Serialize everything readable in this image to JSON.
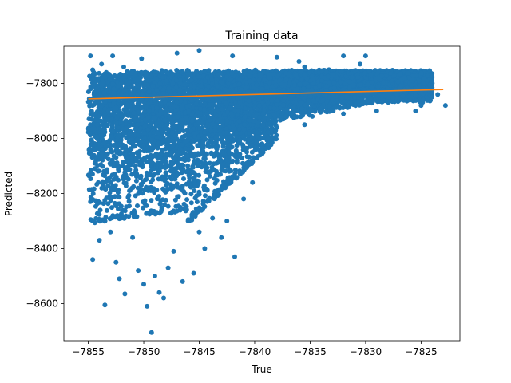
{
  "chart_data": {
    "type": "scatter",
    "title": "Training data",
    "xlabel": "True",
    "ylabel": "Predicted",
    "xlim": [
      -7857.2,
      -7821.5
    ],
    "ylim": [
      -8735,
      -7665
    ],
    "xticks": [
      -7855,
      -7850,
      -7845,
      -7840,
      -7835,
      -7830,
      -7825
    ],
    "xtick_labels": [
      "−7855",
      "−7850",
      "−7845",
      "−7840",
      "−7835",
      "−7830",
      "−7825"
    ],
    "yticks": [
      -8600,
      -8400,
      -8200,
      -8000,
      -7800
    ],
    "ytick_labels": [
      "−8600",
      "−8400",
      "−8200",
      "−8000",
      "−7800"
    ],
    "grid": false,
    "legend": "none",
    "series": [
      {
        "kind": "scatter",
        "color": "#1f77b4",
        "points": [
          [
            -7854.8,
            -7700
          ],
          [
            -7854.5,
            -7760
          ],
          [
            -7854.3,
            -7820
          ],
          [
            -7854.6,
            -7880
          ],
          [
            -7854.2,
            -7950
          ],
          [
            -7854.7,
            -8020
          ],
          [
            -7854.4,
            -8090
          ],
          [
            -7854.1,
            -8160
          ],
          [
            -7854.8,
            -8230
          ],
          [
            -7854.5,
            -8300
          ],
          [
            -7854.0,
            -8370
          ],
          [
            -7854.6,
            -8440
          ],
          [
            -7853.5,
            -8605
          ],
          [
            -7853.8,
            -7730
          ],
          [
            -7853.2,
            -7900
          ],
          [
            -7853.6,
            -8120
          ],
          [
            -7853.0,
            -8340
          ],
          [
            -7852.5,
            -8450
          ],
          [
            -7852.2,
            -8510
          ],
          [
            -7851.7,
            -8565
          ],
          [
            -7851.8,
            -7740
          ],
          [
            -7851.0,
            -8360
          ],
          [
            -7850.5,
            -8480
          ],
          [
            -7850.0,
            -8530
          ],
          [
            -7849.7,
            -8610
          ],
          [
            -7849.3,
            -8705
          ],
          [
            -7849.0,
            -8500
          ],
          [
            -7848.6,
            -8560
          ],
          [
            -7848.2,
            -8580
          ],
          [
            -7847.8,
            -8470
          ],
          [
            -7847.3,
            -8410
          ],
          [
            -7846.5,
            -8520
          ],
          [
            -7846.0,
            -8300
          ],
          [
            -7845.5,
            -8490
          ],
          [
            -7845.0,
            -8340
          ],
          [
            -7844.5,
            -8400
          ],
          [
            -7843.8,
            -8290
          ],
          [
            -7843.0,
            -8360
          ],
          [
            -7842.5,
            -8300
          ],
          [
            -7841.8,
            -8430
          ],
          [
            -7841.0,
            -8220
          ],
          [
            -7840.2,
            -8160
          ],
          [
            -7839.5,
            -8060
          ],
          [
            -7838.8,
            -8000
          ],
          [
            -7838.0,
            -7960
          ],
          [
            -7837.2,
            -7920
          ],
          [
            -7836.5,
            -7900
          ],
          [
            -7835.5,
            -7950
          ],
          [
            -7834.8,
            -7920
          ],
          [
            -7834.0,
            -7890
          ],
          [
            -7833.0,
            -7860
          ],
          [
            -7832.0,
            -7910
          ],
          [
            -7831.0,
            -7850
          ],
          [
            -7830.5,
            -7730
          ],
          [
            -7829.0,
            -7900
          ],
          [
            -7828.0,
            -7820
          ],
          [
            -7827.0,
            -7830
          ],
          [
            -7826.0,
            -7860
          ],
          [
            -7825.5,
            -7900
          ],
          [
            -7825.0,
            -7880
          ],
          [
            -7824.5,
            -7820
          ],
          [
            -7823.5,
            -7840
          ],
          [
            -7822.8,
            -7880
          ],
          [
            -7832.0,
            -7700
          ],
          [
            -7830.0,
            -7700
          ],
          [
            -7847.0,
            -7690
          ],
          [
            -7845.0,
            -7680
          ],
          [
            -7842.0,
            -7700
          ],
          [
            -7838.0,
            -7705
          ],
          [
            -7836.0,
            -7720
          ],
          [
            -7835.5,
            -7740
          ],
          [
            -7826.5,
            -7780
          ],
          [
            -7824.8,
            -7800
          ],
          [
            -7852.8,
            -7700
          ],
          [
            -7850.2,
            -7710
          ]
        ]
      },
      {
        "kind": "line",
        "color": "#ff7f0e",
        "name": "",
        "x": [
          -7855.0,
          -7823.0
        ],
        "y": [
          -7856,
          -7822
        ]
      }
    ]
  }
}
